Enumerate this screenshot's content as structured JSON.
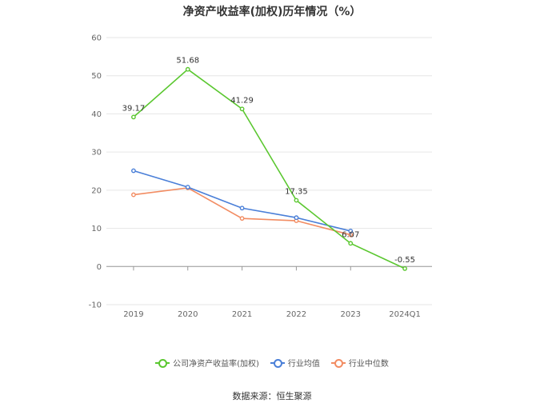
{
  "title": "净资产收益率(加权)历年情况（%）",
  "source": "数据来源：恒生聚源",
  "chart_data": {
    "type": "line",
    "title": "净资产收益率(加权)历年情况（%）",
    "categories": [
      "2019",
      "2020",
      "2021",
      "2022",
      "2023",
      "2024Q1"
    ],
    "ylim": [
      -10,
      60
    ],
    "yticks": [
      -10,
      0,
      10,
      20,
      30,
      40,
      50,
      60
    ],
    "grid": true,
    "legend_position": "bottom",
    "series": [
      {
        "name": "公司净资产收益率(加权)",
        "color": "#5ac72f",
        "values": [
          39.17,
          51.68,
          41.29,
          17.35,
          6.07,
          -0.55
        ],
        "labels": [
          "39.17",
          "51.68",
          "41.29",
          "17.35",
          "6.07",
          "-0.55"
        ]
      },
      {
        "name": "行业均值",
        "color": "#4a7fd8",
        "values": [
          25.1,
          20.8,
          15.3,
          12.8,
          9.3,
          null
        ]
      },
      {
        "name": "行业中位数",
        "color": "#f28c62",
        "values": [
          18.8,
          20.6,
          12.6,
          12.0,
          8.3,
          null
        ]
      }
    ]
  }
}
